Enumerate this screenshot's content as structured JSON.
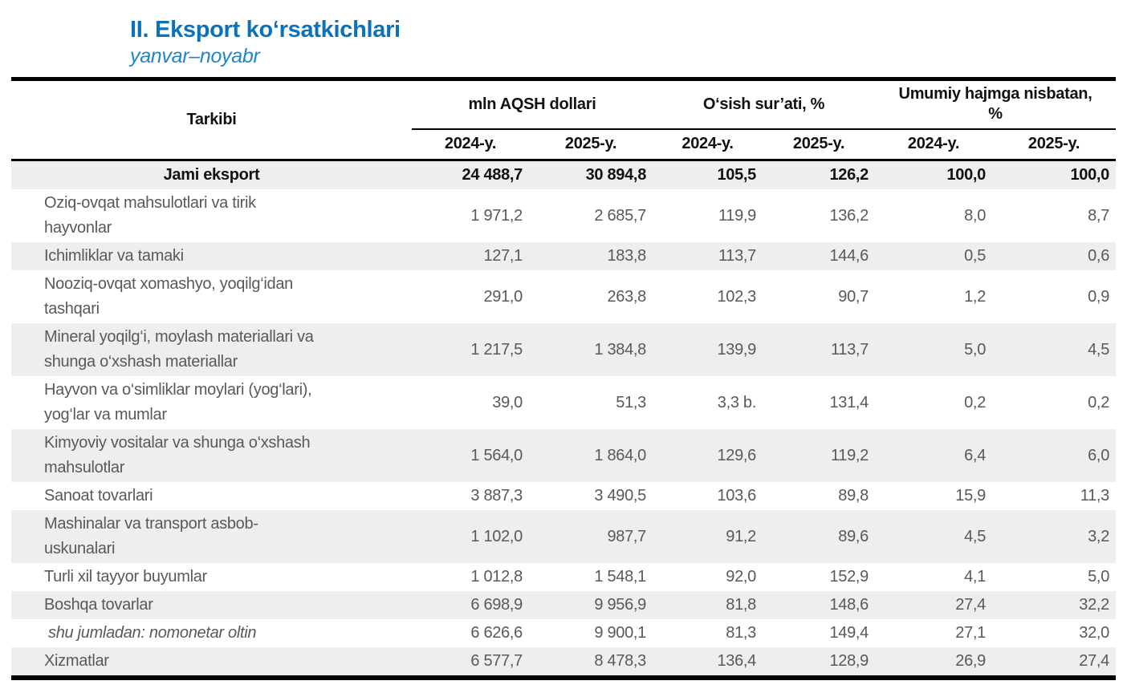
{
  "header": {
    "title": "II. Eksport ko‘rsatkichlari",
    "subtitle": "yanvar–noyabr"
  },
  "colors": {
    "title_blue": "#0a72b9",
    "subtitle_blue": "#1f86c9",
    "stripe_gray": "#eeeeee",
    "text_gray": "#58595b",
    "border_black": "#000000"
  },
  "table": {
    "col1_header": "Tarkibi",
    "groups": [
      {
        "label": "mln AQSH dollari"
      },
      {
        "label": "O‘sish sur’ati, %"
      },
      {
        "label": "Umumiy hajmga nisbatan, %"
      }
    ],
    "year_headers": [
      "2024-y.",
      "2025-y.",
      "2024-y.",
      "2025-y.",
      "2024-y.",
      "2025-y."
    ],
    "rows": [
      {
        "label": "Jami eksport",
        "values": [
          "24 488,7",
          "30 894,8",
          "105,5",
          "126,2",
          "100,0",
          "100,0"
        ],
        "bold": true,
        "shaded": true
      },
      {
        "label": "Oziq-ovqat mahsulotlari va tirik\nhayvonlar",
        "values": [
          "1 971,2",
          "2 685,7",
          "119,9",
          "136,2",
          "8,0",
          "8,7"
        ]
      },
      {
        "label": "Ichimliklar va tamaki",
        "values": [
          "127,1",
          "183,8",
          "113,7",
          "144,6",
          "0,5",
          "0,6"
        ],
        "shaded": true
      },
      {
        "label": "Nooziq-ovqat xomashyo, yoqilg‘idan\ntashqari",
        "values": [
          "291,0",
          "263,8",
          "102,3",
          "90,7",
          "1,2",
          "0,9"
        ]
      },
      {
        "label": "Mineral yoqilg‘i, moylash materiallari va\nshunga o‘xshash materiallar",
        "values": [
          "1 217,5",
          "1 384,8",
          "139,9",
          "113,7",
          "5,0",
          "4,5"
        ],
        "shaded": true
      },
      {
        "label": "Hayvon va o‘simliklar moylari (yog‘lari),\nyog‘lar va mumlar",
        "values": [
          "39,0",
          "51,3",
          "3,3 b.",
          "131,4",
          "0,2",
          "0,2"
        ]
      },
      {
        "label": "Kimyoviy vositalar va shunga o‘xshash\nmahsulotlar",
        "values": [
          "1 564,0",
          "1 864,0",
          "129,6",
          "119,2",
          "6,4",
          "6,0"
        ],
        "shaded": true
      },
      {
        "label": "Sanoat tovarlari",
        "values": [
          "3 887,3",
          "3 490,5",
          "103,6",
          "89,8",
          "15,9",
          "11,3"
        ]
      },
      {
        "label": "Mashinalar va transport asbob-\nuskunalari",
        "values": [
          "1 102,0",
          "987,7",
          "91,2",
          "89,6",
          "4,5",
          "3,2"
        ],
        "shaded": true
      },
      {
        "label": "Turli xil tayyor buyumlar",
        "values": [
          "1 012,8",
          "1 548,1",
          "92,0",
          "152,9",
          "4,1",
          "5,0"
        ]
      },
      {
        "label": "Boshqa tovarlar",
        "values": [
          "6 698,9",
          "9 956,9",
          "81,8",
          "148,6",
          "27,4",
          "32,2"
        ],
        "shaded": true
      },
      {
        "label": "shu jumladan: nomonetar oltin",
        "values": [
          "6 626,6",
          "9 900,1",
          "81,3",
          "149,4",
          "27,1",
          "32,0"
        ],
        "italic": true
      },
      {
        "label": "Xizmatlar",
        "values": [
          "6 577,7",
          "8 478,3",
          "136,4",
          "128,9",
          "26,9",
          "27,4"
        ],
        "shaded": true
      }
    ]
  }
}
